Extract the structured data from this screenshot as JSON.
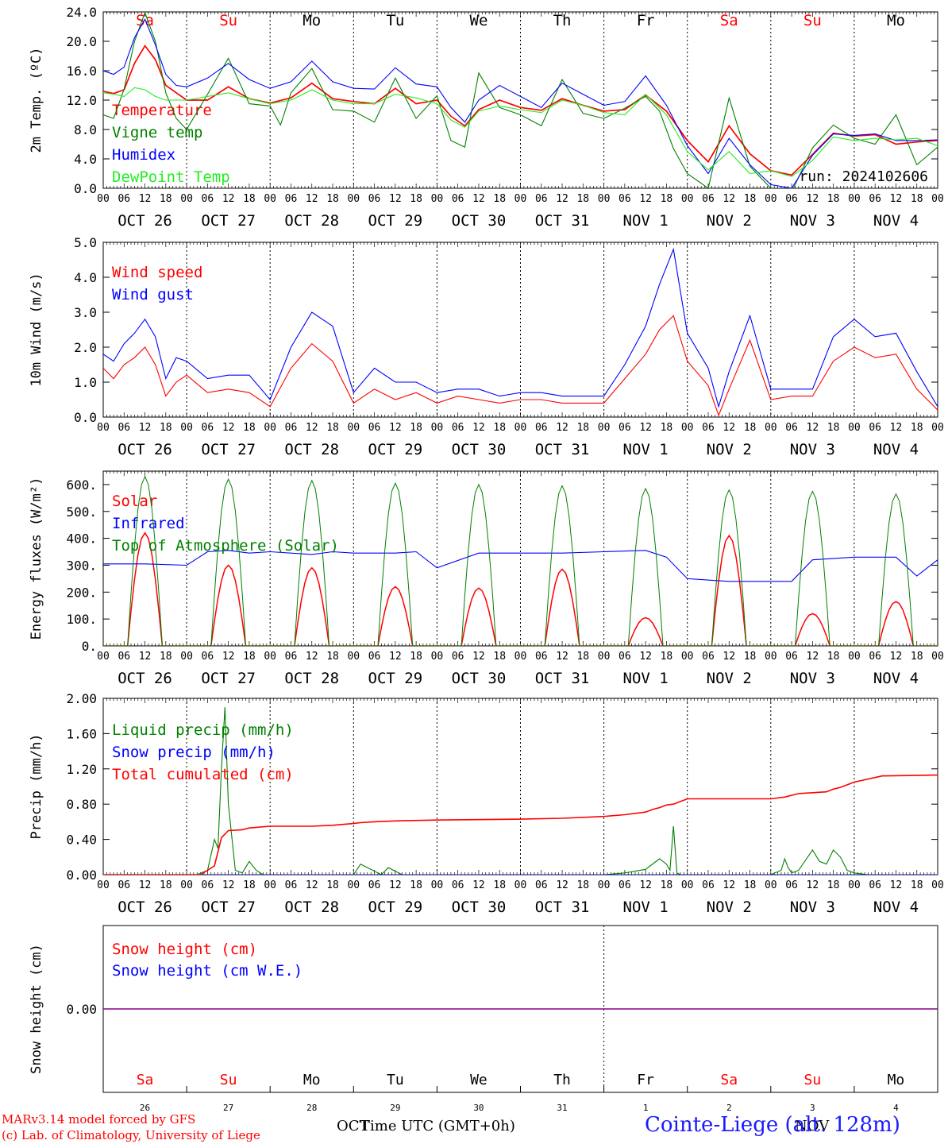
{
  "run_label": "run: 2024102606",
  "days_top": [
    {
      "label": "Sa",
      "color": "#ff0000"
    },
    {
      "label": "Su",
      "color": "#ff0000"
    },
    {
      "label": "Mo",
      "color": "#000000"
    },
    {
      "label": "Tu",
      "color": "#000000"
    },
    {
      "label": "We",
      "color": "#000000"
    },
    {
      "label": "Th",
      "color": "#000000"
    },
    {
      "label": "Fr",
      "color": "#000000"
    },
    {
      "label": "Sa",
      "color": "#ff0000"
    },
    {
      "label": "Su",
      "color": "#ff0000"
    },
    {
      "label": "Mo",
      "color": "#000000"
    }
  ],
  "hour_ticks": [
    "00",
    "06",
    "12",
    "18"
  ],
  "date_labels": [
    "OCT 26",
    "OCT 27",
    "OCT 28",
    "OCT 29",
    "OCT 30",
    "OCT 31",
    "NOV  1",
    "NOV  2",
    "NOV  3",
    "NOV  4"
  ],
  "day_numbers": [
    "26",
    "27",
    "28",
    "29",
    "30",
    "31",
    "1",
    "2",
    "3",
    "4"
  ],
  "month_labels": {
    "oct": "OCT",
    "nov": "NOV"
  },
  "footer": {
    "model": "MARv3.14 model forced by GFS",
    "credit": "(c) Lab. of Climatology, University of Liege",
    "xlabel": "Time UTC (GMT+0h)",
    "station": "Cointe-Liege (alt. 128m)"
  },
  "colors": {
    "red": "#ff0000",
    "green": "#008000",
    "blue": "#0000ff",
    "lightgreen": "#22ee22",
    "purple": "#800080"
  },
  "chart_data": [
    {
      "type": "line",
      "ylabel": "2m Temp. (ºC)",
      "ylim": [
        0,
        24
      ],
      "yticks": [
        "0.0",
        "4.0",
        "8.0",
        "12.0",
        "16.0",
        "20.0",
        "24.0"
      ],
      "x_unit": "hours since 2024-10-26 00 UTC",
      "series": [
        {
          "name": "Temperature",
          "color": "#ff0000",
          "x": [
            0,
            3,
            6,
            9,
            12,
            15,
            18,
            21,
            24,
            30,
            36,
            42,
            48,
            54,
            60,
            66,
            72,
            78,
            84,
            90,
            96,
            100,
            104,
            108,
            114,
            120,
            126,
            132,
            138,
            144,
            150,
            156,
            162,
            168,
            174,
            180,
            186,
            192,
            198,
            204,
            210,
            216,
            222,
            228,
            234,
            240
          ],
          "values": [
            13.2,
            12.9,
            13.4,
            17,
            19.4,
            17.5,
            14,
            13,
            12,
            12,
            13.8,
            12.2,
            11.6,
            12.3,
            14.3,
            12.2,
            11.8,
            11.5,
            13.6,
            11.5,
            12,
            9.8,
            8.5,
            10.7,
            12,
            11,
            10.6,
            12.2,
            11.3,
            10.5,
            10.7,
            12.7,
            10.5,
            6.5,
            3.6,
            8.5,
            4.7,
            2.4,
            1.8,
            4.6,
            7.5,
            7.1,
            7.3,
            6,
            6.3,
            6.5
          ]
        },
        {
          "name": "Vigne temp",
          "color": "#008000",
          "x": [
            0,
            3,
            6,
            9,
            12,
            15,
            18,
            21,
            24,
            30,
            36,
            42,
            48,
            51,
            54,
            60,
            66,
            72,
            78,
            84,
            90,
            96,
            100,
            104,
            108,
            114,
            120,
            126,
            132,
            138,
            144,
            150,
            156,
            160,
            164,
            168,
            174,
            180,
            186,
            192,
            198,
            204,
            210,
            216,
            222,
            228,
            234,
            240
          ],
          "values": [
            10,
            9.5,
            13.5,
            20,
            23.9,
            20,
            13,
            9.5,
            8,
            12.8,
            17.7,
            11.5,
            11.2,
            8.6,
            13,
            16.3,
            10.7,
            10.5,
            9,
            15,
            9.5,
            12.6,
            6.5,
            5.6,
            15.7,
            11,
            10,
            8.5,
            14.8,
            10.2,
            9.5,
            10.9,
            12.5,
            10.5,
            5.4,
            2,
            0,
            12.3,
            3,
            0,
            -0.5,
            5.5,
            8.6,
            6.8,
            6,
            10,
            3.2,
            5.6
          ]
        },
        {
          "name": "Humidex",
          "color": "#0000ff",
          "x": [
            0,
            3,
            6,
            9,
            12,
            15,
            18,
            21,
            24,
            30,
            36,
            42,
            48,
            54,
            60,
            66,
            72,
            78,
            84,
            90,
            96,
            100,
            104,
            108,
            114,
            120,
            126,
            132,
            138,
            144,
            150,
            156,
            162,
            168,
            174,
            180,
            186,
            192,
            198,
            204,
            210,
            216,
            222,
            228,
            234,
            240
          ],
          "values": [
            16,
            15.5,
            16.5,
            20.5,
            23,
            19.5,
            15.5,
            14,
            13.8,
            15,
            17,
            14.8,
            13.6,
            14.5,
            17.3,
            14.5,
            13.6,
            13.5,
            16.4,
            14.2,
            13.8,
            11,
            9,
            12,
            14,
            12.5,
            11,
            14.3,
            12.8,
            11.3,
            11.8,
            15.3,
            11.3,
            5.8,
            2,
            6.8,
            3.2,
            0.5,
            0,
            4.5,
            7.4,
            7.2,
            7.4,
            6.5,
            6.5,
            6.6
          ]
        },
        {
          "name": "DewPoint Temp",
          "color": "#22ee22",
          "x": [
            0,
            3,
            6,
            9,
            12,
            15,
            18,
            21,
            24,
            30,
            36,
            42,
            48,
            54,
            60,
            66,
            72,
            78,
            84,
            90,
            96,
            100,
            104,
            108,
            114,
            120,
            126,
            132,
            138,
            144,
            150,
            156,
            162,
            168,
            174,
            180,
            186,
            192,
            198,
            204,
            210,
            216,
            222,
            228,
            234,
            240
          ],
          "values": [
            13,
            12.8,
            12.5,
            13.7,
            13.4,
            12.5,
            12,
            12,
            12,
            12.5,
            13,
            12.2,
            11.5,
            12,
            13.4,
            12,
            11.5,
            11.5,
            12.8,
            12.3,
            11.5,
            9.3,
            8.3,
            10.5,
            11.2,
            10.7,
            10.3,
            12,
            11.3,
            10.3,
            10,
            12.8,
            10,
            5,
            2.5,
            5,
            2,
            2.4,
            1.6,
            3.8,
            7,
            6.5,
            6.8,
            6.6,
            6.8,
            5.8
          ]
        }
      ],
      "annotations": [
        "run: 2024102606"
      ]
    },
    {
      "type": "line",
      "ylabel": "10m Wind (m/s)",
      "ylim": [
        0,
        5
      ],
      "yticks": [
        "0.0",
        "1.0",
        "2.0",
        "3.0",
        "4.0",
        "5.0"
      ],
      "x_unit": "hours since 2024-10-26 00 UTC",
      "series": [
        {
          "name": "Wind speed",
          "color": "#ff0000",
          "x": [
            0,
            3,
            6,
            9,
            12,
            15,
            18,
            21,
            24,
            30,
            36,
            42,
            48,
            54,
            60,
            66,
            72,
            78,
            84,
            90,
            96,
            102,
            108,
            114,
            120,
            126,
            132,
            138,
            144,
            150,
            156,
            160,
            164,
            168,
            174,
            177,
            180,
            186,
            192,
            198,
            204,
            210,
            216,
            222,
            228,
            234,
            240
          ],
          "values": [
            1.4,
            1.1,
            1.5,
            1.7,
            2,
            1.5,
            0.6,
            1,
            1.2,
            0.7,
            0.8,
            0.7,
            0.3,
            1.4,
            2.1,
            1.6,
            0.4,
            0.8,
            0.5,
            0.7,
            0.4,
            0.6,
            0.5,
            0.4,
            0.5,
            0.5,
            0.4,
            0.4,
            0.4,
            1.1,
            1.8,
            2.5,
            2.9,
            1.6,
            0.9,
            0.05,
            0.8,
            2.2,
            0.5,
            0.6,
            0.6,
            1.6,
            2,
            1.7,
            1.8,
            0.8,
            0.2
          ]
        },
        {
          "name": "Wind gust",
          "color": "#0000ff",
          "x": [
            0,
            3,
            6,
            9,
            12,
            15,
            18,
            21,
            24,
            30,
            36,
            42,
            48,
            54,
            60,
            66,
            72,
            78,
            84,
            90,
            96,
            102,
            108,
            114,
            120,
            126,
            132,
            138,
            144,
            150,
            156,
            160,
            164,
            168,
            174,
            177,
            180,
            186,
            192,
            198,
            204,
            210,
            216,
            222,
            228,
            234,
            240
          ],
          "values": [
            1.8,
            1.6,
            2.1,
            2.4,
            2.8,
            2.3,
            1.1,
            1.7,
            1.6,
            1.1,
            1.2,
            1.2,
            0.5,
            2,
            3,
            2.6,
            0.7,
            1.4,
            1,
            1,
            0.7,
            0.8,
            0.8,
            0.6,
            0.7,
            0.7,
            0.6,
            0.6,
            0.6,
            1.5,
            2.6,
            3.8,
            4.8,
            2.4,
            1.4,
            0.3,
            1.3,
            2.9,
            0.8,
            0.8,
            0.8,
            2.3,
            2.8,
            2.3,
            2.4,
            1.3,
            0.3
          ]
        }
      ]
    },
    {
      "type": "line",
      "ylabel": "Energy fluxes (W/m²)",
      "ylim": [
        0,
        650
      ],
      "yticks": [
        "0.",
        "100.",
        "200.",
        "300.",
        "400.",
        "500.",
        "600."
      ],
      "x_unit": "hours since 2024-10-26 00 UTC",
      "daily_solar_peak": [
        420,
        300,
        290,
        220,
        215,
        285,
        105,
        410,
        120,
        165
      ],
      "daily_toa_peak": [
        630,
        620,
        615,
        605,
        600,
        595,
        585,
        580,
        575,
        565
      ],
      "series": [
        {
          "name": "Solar",
          "color": "#ff0000",
          "peaks": [
            420,
            300,
            290,
            220,
            215,
            285,
            105,
            410,
            120,
            165
          ]
        },
        {
          "name": "Infrared",
          "color": "#0000ff",
          "x": [
            0,
            12,
            24,
            30,
            36,
            42,
            48,
            60,
            66,
            72,
            84,
            90,
            96,
            108,
            120,
            132,
            144,
            156,
            162,
            168,
            180,
            192,
            198,
            204,
            216,
            228,
            234,
            240
          ],
          "values": [
            305,
            305,
            300,
            350,
            355,
            345,
            350,
            340,
            350,
            345,
            345,
            350,
            290,
            345,
            345,
            345,
            350,
            355,
            330,
            250,
            240,
            240,
            240,
            320,
            330,
            330,
            260,
            320
          ]
        },
        {
          "name": "Top of Atmosphere (Solar)",
          "color": "#008000",
          "peaks": [
            630,
            620,
            615,
            605,
            600,
            595,
            585,
            580,
            575,
            565
          ]
        }
      ]
    },
    {
      "type": "line",
      "ylabel": "Precip (mm/h)",
      "ylim": [
        0,
        2
      ],
      "yticks": [
        "0.00",
        "0.40",
        "0.80",
        "1.20",
        "1.60",
        "2.00"
      ],
      "x_unit": "hours since 2024-10-26 00 UTC",
      "series": [
        {
          "name": "Liquid precip (mm/h)",
          "color": "#008000",
          "x": [
            0,
            27,
            30,
            32,
            33,
            34,
            35,
            36,
            38,
            40,
            42,
            44,
            46,
            48,
            72,
            74,
            76,
            80,
            82,
            84,
            86,
            88,
            96,
            120,
            144,
            150,
            156,
            160,
            162,
            163,
            164,
            165,
            166,
            168,
            192,
            195,
            196,
            197,
            198,
            200,
            204,
            206,
            208,
            210,
            212,
            214,
            216,
            220,
            240
          ],
          "values": [
            0,
            0,
            0.05,
            0.4,
            0.3,
            1.2,
            1.9,
            0.8,
            0.05,
            0.02,
            0.15,
            0.05,
            0,
            0,
            0,
            0.12,
            0.08,
            0,
            0.08,
            0.04,
            0,
            0,
            0,
            0,
            0,
            0.02,
            0.06,
            0.18,
            0.12,
            0.05,
            0.55,
            0.02,
            0,
            0,
            0,
            0.05,
            0.18,
            0.08,
            0.02,
            0.05,
            0.28,
            0.15,
            0.12,
            0.28,
            0.2,
            0.05,
            0.02,
            0,
            0
          ]
        },
        {
          "name": "Snow precip (mm/h)",
          "color": "#0000ff",
          "x": [
            0,
            240
          ],
          "values": [
            0,
            0
          ]
        },
        {
          "name": "Total cumulated (cm)",
          "color": "#ff0000",
          "x": [
            0,
            28,
            32,
            34,
            36,
            40,
            42,
            48,
            60,
            66,
            72,
            74,
            78,
            84,
            96,
            120,
            132,
            144,
            150,
            156,
            158,
            160,
            162,
            164,
            168,
            180,
            192,
            196,
            200,
            204,
            208,
            210,
            212,
            216,
            224,
            240
          ],
          "values": [
            0,
            0,
            0.1,
            0.42,
            0.5,
            0.51,
            0.53,
            0.55,
            0.55,
            0.56,
            0.58,
            0.59,
            0.6,
            0.61,
            0.62,
            0.63,
            0.64,
            0.66,
            0.68,
            0.71,
            0.74,
            0.76,
            0.79,
            0.8,
            0.86,
            0.86,
            0.86,
            0.88,
            0.92,
            0.93,
            0.94,
            0.97,
            0.99,
            1.05,
            1.12,
            1.13
          ]
        }
      ]
    },
    {
      "type": "line",
      "ylabel": "Snow height (cm)",
      "ylim": [
        -1,
        1
      ],
      "yticks": [
        "0.00"
      ],
      "x_unit": "hours since 2024-10-26 00 UTC",
      "series": [
        {
          "name": "Snow height (cm)",
          "color": "#ff0000",
          "x": [
            0,
            240
          ],
          "values": [
            0,
            0
          ]
        },
        {
          "name": "Snow height (cm W.E.)",
          "color": "#0000ff",
          "x": [
            0,
            240
          ],
          "values": [
            0,
            0
          ]
        }
      ]
    }
  ]
}
